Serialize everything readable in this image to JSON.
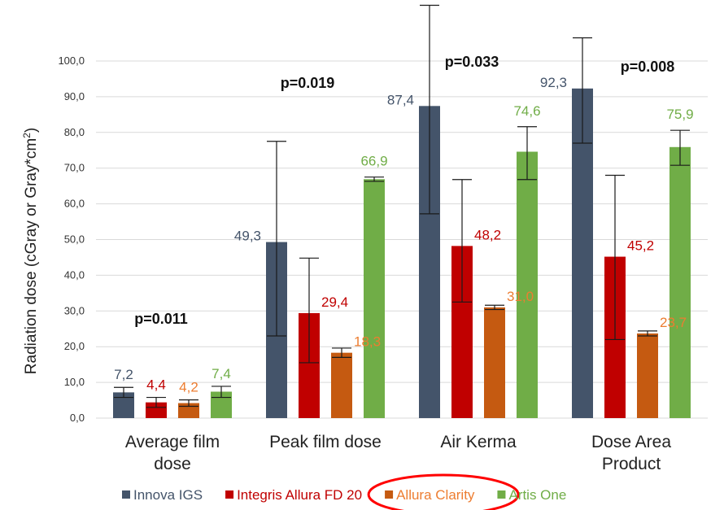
{
  "chart_data": {
    "type": "bar",
    "ylabel_main": "Radiation dose (cGray or Gray*cm",
    "ylabel_sup": "2",
    "ylabel_tail": ")",
    "ylim": [
      0,
      100
    ],
    "yticks": [
      "0,0",
      "10,0",
      "20,0",
      "30,0",
      "40,0",
      "50,0",
      "60,0",
      "70,0",
      "80,0",
      "90,0",
      "100,0"
    ],
    "grid": true,
    "legend_position": "bottom",
    "categories": [
      [
        "Average film",
        "dose"
      ],
      [
        "Peak film dose"
      ],
      [
        "Air Kerma"
      ],
      [
        "Dose Area",
        "Product"
      ]
    ],
    "p_values": [
      "p=0.011",
      "p=0.019",
      "p=0.033",
      "p=0.008"
    ],
    "series": [
      {
        "name": "Innova IGS",
        "color": "#44546a",
        "label_color": "#44546a",
        "values": [
          7.2,
          49.3,
          87.4,
          92.3
        ],
        "labels": [
          "7,2",
          "49,3",
          "87,4",
          "92,3"
        ],
        "err_low": [
          5.8,
          23.0,
          57.2,
          77.0
        ],
        "err_high": [
          8.6,
          77.5,
          115.6,
          106.5
        ]
      },
      {
        "name": "Integris Allura FD 20",
        "color": "#c00000",
        "label_color": "#c00000",
        "values": [
          4.4,
          29.4,
          48.2,
          45.2
        ],
        "labels": [
          "4,4",
          "29,4",
          "48,2",
          "45,2"
        ],
        "err_low": [
          3.0,
          15.5,
          32.5,
          22.0
        ],
        "err_high": [
          5.8,
          44.8,
          66.8,
          68.0
        ]
      },
      {
        "name": "Allura Clarity",
        "color": "#c55a11",
        "label_color": "#ed7d31",
        "values": [
          4.2,
          18.3,
          31.0,
          23.7
        ],
        "labels": [
          "4,2",
          "18,3",
          "31,0",
          "23,7"
        ],
        "err_low": [
          3.3,
          17.0,
          30.4,
          23.0
        ],
        "err_high": [
          5.1,
          19.6,
          31.6,
          24.4
        ]
      },
      {
        "name": "Artis One",
        "color": "#70ad47",
        "label_color": "#70ad47",
        "values": [
          7.4,
          66.9,
          74.6,
          75.9
        ],
        "labels": [
          "7,4",
          "66,9",
          "74,6",
          "75,9"
        ],
        "err_low": [
          5.8,
          66.3,
          66.8,
          70.8
        ],
        "err_high": [
          8.9,
          67.5,
          81.6,
          80.6
        ]
      }
    ],
    "highlight": {
      "series": "Allura Clarity",
      "shape": "ellipse",
      "color": "#ff0000"
    }
  }
}
